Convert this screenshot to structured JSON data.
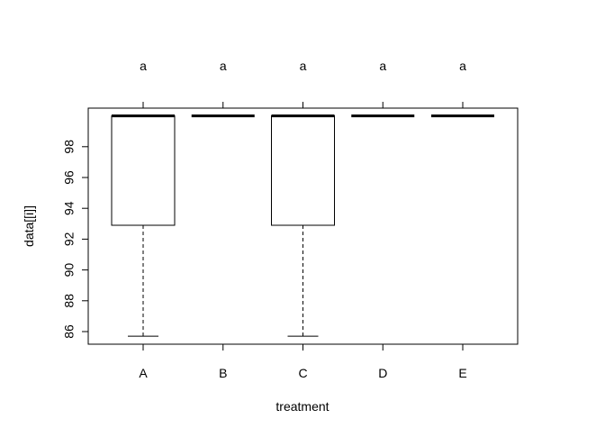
{
  "chart_data": {
    "type": "box",
    "xlabel": "treatment",
    "ylabel": "data[[i]]",
    "categories": [
      "A",
      "B",
      "C",
      "D",
      "E"
    ],
    "group_labels": [
      "a",
      "a",
      "a",
      "a",
      "a"
    ],
    "y_ticks": [
      86,
      88,
      90,
      92,
      94,
      96,
      98
    ],
    "y_tick_labels": [
      "86",
      "88",
      "90",
      "92",
      "94",
      "96",
      "98"
    ],
    "ylim": [
      85.1,
      100.0
    ],
    "grid": false,
    "boxes": [
      {
        "category": "A",
        "min": 85.7,
        "q1": 92.9,
        "median": 100.0,
        "q3": 100.0,
        "max": 100.0
      },
      {
        "category": "B",
        "min": 100.0,
        "q1": 100.0,
        "median": 100.0,
        "q3": 100.0,
        "max": 100.0
      },
      {
        "category": "C",
        "min": 85.7,
        "q1": 92.9,
        "median": 100.0,
        "q3": 100.0,
        "max": 100.0
      },
      {
        "category": "D",
        "min": 100.0,
        "q1": 100.0,
        "median": 100.0,
        "q3": 100.0,
        "max": 100.0
      },
      {
        "category": "E",
        "min": 100.0,
        "q1": 100.0,
        "median": 100.0,
        "q3": 100.0,
        "max": 100.0
      }
    ]
  }
}
